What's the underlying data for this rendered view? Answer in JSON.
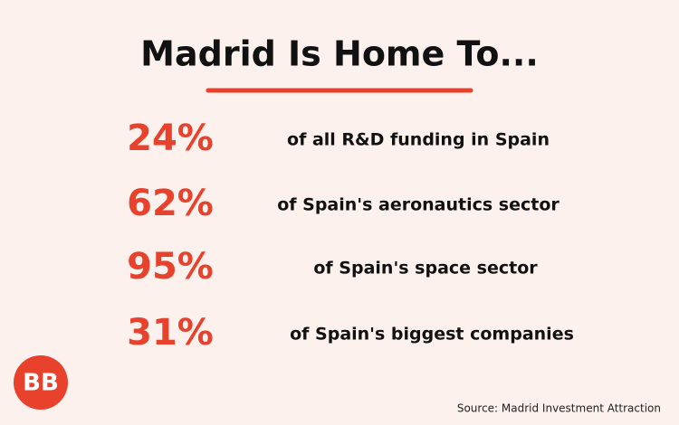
{
  "title": "Madrid Is Home To...",
  "items": [
    {
      "value": "24%",
      "text": "of all R&D funding in Spain"
    },
    {
      "value": "62%",
      "text": "of Spain's aeronautics sector"
    },
    {
      "value": "95%",
      "text": "of Spain's space sector"
    },
    {
      "value": "31%",
      "text": "of Spain's biggest companies"
    }
  ],
  "logo": "BB",
  "source": "Source: Madrid Investment Attraction"
}
